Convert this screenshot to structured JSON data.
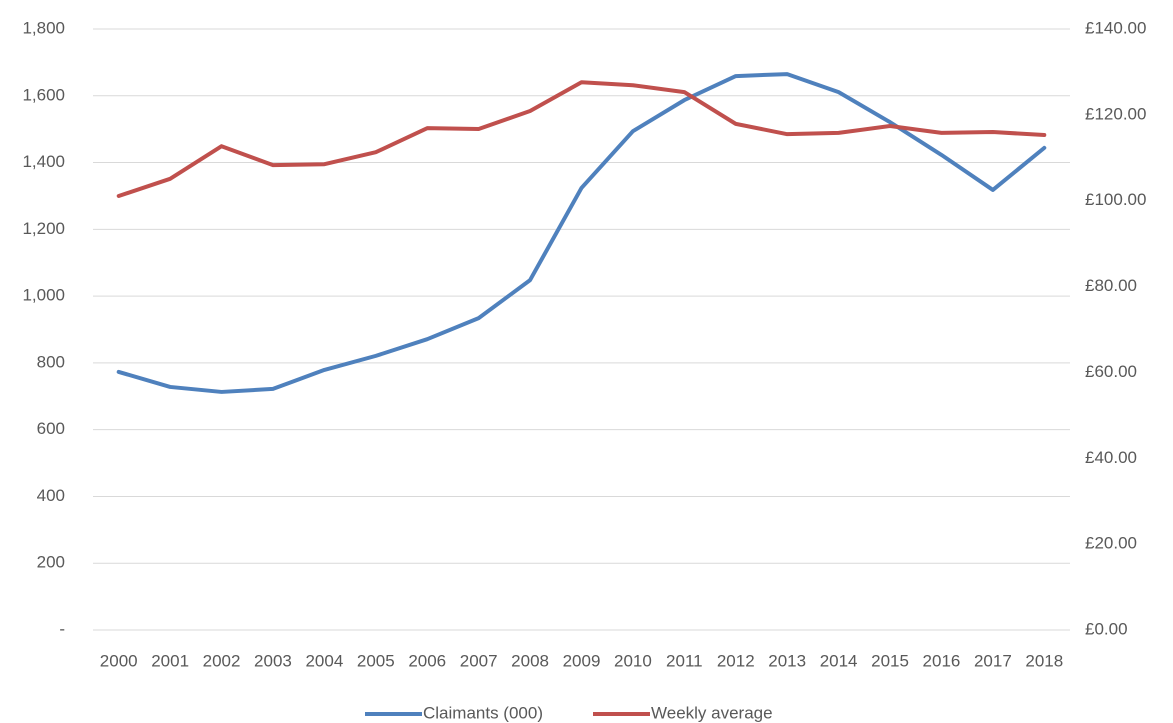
{
  "chart_data": {
    "type": "line",
    "categories": [
      "2000",
      "2001",
      "2002",
      "2003",
      "2004",
      "2005",
      "2006",
      "2007",
      "2008",
      "2009",
      "2010",
      "2011",
      "2012",
      "2013",
      "2014",
      "2015",
      "2016",
      "2017",
      "2018"
    ],
    "series": [
      {
        "name": "Claimants (000)",
        "color": "#4f81bd",
        "values": [
          773,
          728,
          713,
          722,
          779,
          821,
          871,
          934,
          1048,
          1324,
          1494,
          1587,
          1659,
          1665,
          1611,
          1521,
          1423,
          1318,
          1444
        ]
      },
      {
        "name": "Weekly average",
        "color": "#c0504d",
        "axis": "y2",
        "values": [
          101.1,
          105.1,
          112.7,
          108.3,
          108.5,
          111.3,
          116.9,
          116.7,
          120.9,
          127.6,
          126.9,
          125.3,
          117.9,
          115.5,
          115.8,
          117.4,
          115.8,
          116.0,
          115.3
        ]
      }
    ],
    "ylim": [
      0,
      1800
    ],
    "yticks": [
      {
        "value": 0,
        "label": "-"
      },
      200,
      400,
      600,
      800,
      {
        "value": 1000,
        "label": "1,000"
      },
      {
        "value": 1200,
        "label": "1,200"
      },
      {
        "value": 1400,
        "label": "1,400"
      },
      {
        "value": 1600,
        "label": "1,600"
      },
      {
        "value": 1800,
        "label": "1,800"
      }
    ],
    "y2lim": [
      0,
      140
    ],
    "y2ticks": [
      {
        "value": 0,
        "label": "£0.00"
      },
      {
        "value": 20,
        "label": "£20.00"
      },
      {
        "value": 40,
        "label": "£40.00"
      },
      {
        "value": 60,
        "label": "£60.00"
      },
      {
        "value": 80,
        "label": "£80.00"
      },
      {
        "value": 100,
        "label": "£100.00"
      },
      {
        "value": 120,
        "label": "£120.00"
      },
      {
        "value": 140,
        "label": "£140.00"
      }
    ],
    "grid": true,
    "legend": "bottom"
  }
}
